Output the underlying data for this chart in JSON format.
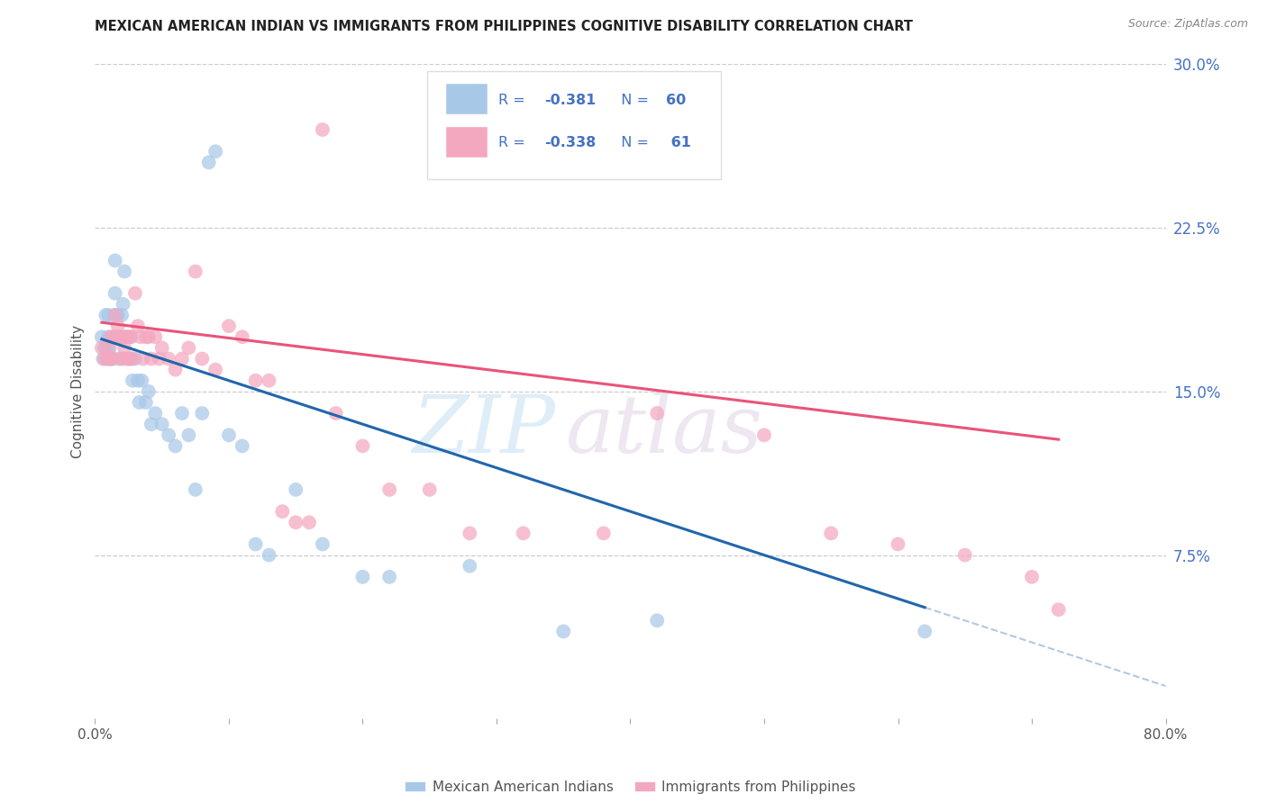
{
  "title": "MEXICAN AMERICAN INDIAN VS IMMIGRANTS FROM PHILIPPINES COGNITIVE DISABILITY CORRELATION CHART",
  "source": "Source: ZipAtlas.com",
  "ylabel": "Cognitive Disability",
  "blue_color": "#a8c8e8",
  "pink_color": "#f4a8c0",
  "blue_line_color": "#2166ac",
  "pink_line_color": "#e8547a",
  "blue_R": -0.381,
  "blue_N": 60,
  "pink_R": -0.338,
  "pink_N": 61,
  "legend_label_blue": "Mexican American Indians",
  "legend_label_pink": "Immigrants from Philippines",
  "watermark_zip": "ZIP",
  "watermark_atlas": "atlas",
  "xlim": [
    0.0,
    0.8
  ],
  "ylim": [
    0.0,
    0.3
  ],
  "yticks_right": [
    0.075,
    0.15,
    0.225,
    0.3
  ],
  "ytick_labels_right": [
    "7.5%",
    "15.0%",
    "22.5%",
    "30.0%"
  ],
  "blue_scatter_x": [
    0.005,
    0.006,
    0.007,
    0.008,
    0.008,
    0.009,
    0.01,
    0.01,
    0.01,
    0.011,
    0.012,
    0.013,
    0.013,
    0.014,
    0.015,
    0.015,
    0.016,
    0.016,
    0.017,
    0.017,
    0.018,
    0.019,
    0.02,
    0.02,
    0.021,
    0.022,
    0.023,
    0.025,
    0.026,
    0.027,
    0.028,
    0.03,
    0.032,
    0.033,
    0.035,
    0.038,
    0.04,
    0.042,
    0.045,
    0.05,
    0.055,
    0.06,
    0.065,
    0.07,
    0.075,
    0.08,
    0.085,
    0.09,
    0.1,
    0.11,
    0.12,
    0.13,
    0.15,
    0.17,
    0.2,
    0.22,
    0.28,
    0.35,
    0.42,
    0.62
  ],
  "blue_scatter_y": [
    0.175,
    0.165,
    0.17,
    0.17,
    0.185,
    0.165,
    0.185,
    0.175,
    0.165,
    0.17,
    0.165,
    0.175,
    0.165,
    0.185,
    0.21,
    0.195,
    0.185,
    0.175,
    0.185,
    0.175,
    0.165,
    0.175,
    0.185,
    0.175,
    0.19,
    0.205,
    0.175,
    0.165,
    0.175,
    0.165,
    0.155,
    0.165,
    0.155,
    0.145,
    0.155,
    0.145,
    0.15,
    0.135,
    0.14,
    0.135,
    0.13,
    0.125,
    0.14,
    0.13,
    0.105,
    0.14,
    0.255,
    0.26,
    0.13,
    0.125,
    0.08,
    0.075,
    0.105,
    0.08,
    0.065,
    0.065,
    0.07,
    0.04,
    0.045,
    0.04
  ],
  "pink_scatter_x": [
    0.005,
    0.007,
    0.009,
    0.01,
    0.011,
    0.012,
    0.013,
    0.014,
    0.015,
    0.016,
    0.017,
    0.018,
    0.019,
    0.02,
    0.021,
    0.022,
    0.023,
    0.024,
    0.025,
    0.026,
    0.027,
    0.028,
    0.03,
    0.032,
    0.034,
    0.036,
    0.038,
    0.04,
    0.042,
    0.045,
    0.048,
    0.05,
    0.055,
    0.06,
    0.065,
    0.07,
    0.075,
    0.08,
    0.09,
    0.1,
    0.11,
    0.12,
    0.13,
    0.14,
    0.15,
    0.16,
    0.17,
    0.18,
    0.2,
    0.22,
    0.25,
    0.28,
    0.32,
    0.38,
    0.42,
    0.5,
    0.55,
    0.6,
    0.65,
    0.7,
    0.72
  ],
  "pink_scatter_y": [
    0.17,
    0.165,
    0.165,
    0.17,
    0.165,
    0.175,
    0.165,
    0.175,
    0.185,
    0.175,
    0.18,
    0.175,
    0.165,
    0.175,
    0.165,
    0.17,
    0.175,
    0.165,
    0.175,
    0.165,
    0.175,
    0.165,
    0.195,
    0.18,
    0.175,
    0.165,
    0.175,
    0.175,
    0.165,
    0.175,
    0.165,
    0.17,
    0.165,
    0.16,
    0.165,
    0.17,
    0.205,
    0.165,
    0.16,
    0.18,
    0.175,
    0.155,
    0.155,
    0.095,
    0.09,
    0.09,
    0.27,
    0.14,
    0.125,
    0.105,
    0.105,
    0.085,
    0.085,
    0.085,
    0.14,
    0.13,
    0.085,
    0.08,
    0.075,
    0.065,
    0.05
  ]
}
